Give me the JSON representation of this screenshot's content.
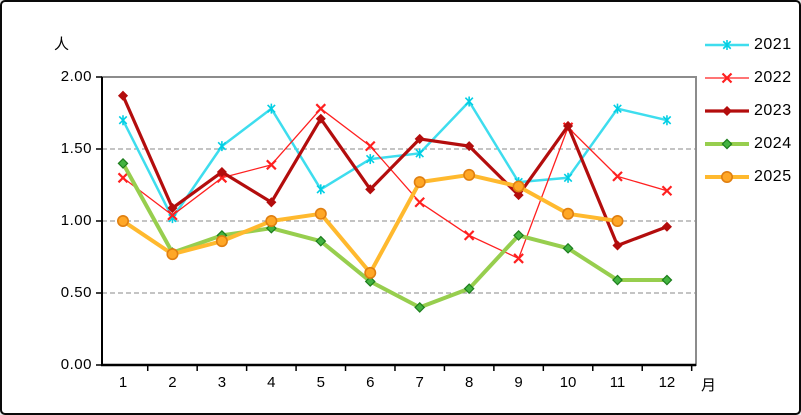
{
  "chart": {
    "y_axis_title": "人",
    "x_axis_title": "月"
  },
  "chart_data": {
    "type": "line",
    "title": "",
    "ylabel": "人",
    "xlabel": "月",
    "ylim": [
      0,
      2
    ],
    "yticks": [
      0,
      0.5,
      1,
      1.5,
      2
    ],
    "y_tick_labels": [
      "0.00",
      "0.50",
      "1.00",
      "1.50",
      "2.00"
    ],
    "categories": [
      "1",
      "2",
      "3",
      "4",
      "5",
      "6",
      "7",
      "8",
      "9",
      "10",
      "11",
      "12"
    ],
    "grid": "horizontal-dashed",
    "legend_position": "right-top-outside",
    "series": [
      {
        "name": "2021",
        "color": "#3eddee",
        "marker": "star",
        "marker_fill": "#00cfe4",
        "marker_edge": "#00cfe4",
        "line_width": 2.5,
        "marker_size": 5,
        "values": [
          1.7,
          1.02,
          1.52,
          1.78,
          1.22,
          1.43,
          1.47,
          1.83,
          1.27,
          1.3,
          1.78,
          1.7
        ]
      },
      {
        "name": "2022",
        "color": "#ff2020",
        "marker": "x",
        "marker_fill": "#ff2020",
        "marker_edge": "#ff2020",
        "line_width": 1.3,
        "marker_size": 4.5,
        "values": [
          1.3,
          1.04,
          1.3,
          1.39,
          1.78,
          1.52,
          1.13,
          0.9,
          0.74,
          1.65,
          1.31,
          1.21
        ]
      },
      {
        "name": "2023",
        "color": "#b30d0d",
        "marker": "diamond",
        "marker_fill": "#b30d0d",
        "marker_edge": "#b30d0d",
        "line_width": 3.2,
        "marker_size": 4.2,
        "values": [
          1.87,
          1.09,
          1.34,
          1.13,
          1.71,
          1.22,
          1.57,
          1.52,
          1.18,
          1.66,
          0.83,
          0.96
        ]
      },
      {
        "name": "2024",
        "color": "#97ce4e",
        "marker": "diamond",
        "marker_fill": "#43b340",
        "marker_edge": "#1d7d1d",
        "line_width": 4,
        "marker_size": 4.6,
        "values": [
          1.4,
          0.78,
          0.9,
          0.95,
          0.86,
          0.58,
          0.4,
          0.53,
          0.9,
          0.81,
          0.59,
          0.59
        ]
      },
      {
        "name": "2025",
        "color": "#ffb92e",
        "marker": "circle",
        "marker_fill": "#ffa726",
        "marker_edge": "#e07f10",
        "line_width": 4,
        "marker_size": 5.2,
        "values": [
          1.0,
          0.77,
          0.86,
          1.0,
          1.05,
          0.64,
          1.27,
          1.32,
          1.24,
          1.05,
          1.0,
          null
        ]
      }
    ],
    "colors": {
      "plot_border": "#8c8c8c",
      "axis": "#000000",
      "gridline": "#8a8a8a",
      "background": "#ffffff"
    }
  },
  "legend": {
    "items": [
      {
        "label": "2021"
      },
      {
        "label": "2022"
      },
      {
        "label": "2023"
      },
      {
        "label": "2024"
      },
      {
        "label": "2025"
      }
    ]
  }
}
